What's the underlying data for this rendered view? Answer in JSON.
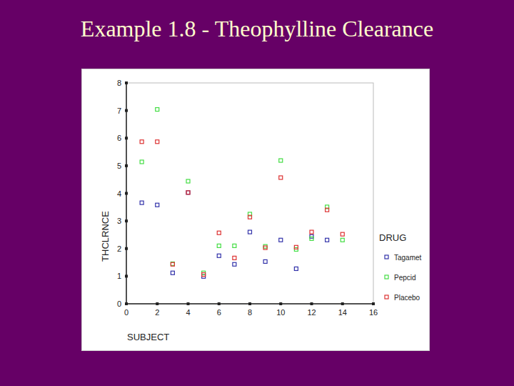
{
  "chart_data": {
    "type": "scatter",
    "title": "Example 1.8 - Theophylline Clearance",
    "x_label": "SUBJECT",
    "y_label": "THCLRNCE",
    "legend_title": "DRUG",
    "x": [
      1,
      2,
      3,
      4,
      5,
      6,
      7,
      8,
      9,
      10,
      11,
      12,
      13,
      14
    ],
    "series": [
      {
        "name": "Tagamet",
        "color": "#3333aa",
        "marker": "square",
        "values": [
          3.66,
          3.58,
          1.12,
          4.03,
          0.99,
          1.74,
          1.43,
          2.6,
          1.53,
          2.31,
          1.27,
          2.44,
          2.31,
          null
        ]
      },
      {
        "name": "Pepcid",
        "color": "#44dd44",
        "marker": "square",
        "values": [
          5.14,
          7.04,
          1.45,
          4.44,
          1.12,
          2.1,
          2.1,
          3.25,
          2.08,
          5.19,
          1.97,
          2.36,
          3.51,
          2.31
        ]
      },
      {
        "name": "Placebo",
        "color": "#dd3333",
        "marker": "square",
        "values": [
          5.87,
          5.87,
          1.43,
          4.03,
          1.06,
          2.57,
          1.66,
          3.14,
          2.03,
          4.57,
          2.05,
          2.6,
          3.4,
          2.52
        ]
      }
    ],
    "xlim": [
      0,
      16
    ],
    "xticks": [
      0,
      2,
      4,
      6,
      8,
      10,
      12,
      14,
      16
    ],
    "ylim": [
      0,
      8
    ],
    "yticks": [
      0,
      1,
      2,
      3,
      4,
      5,
      6,
      7,
      8
    ],
    "grid": false,
    "legend": "right"
  }
}
